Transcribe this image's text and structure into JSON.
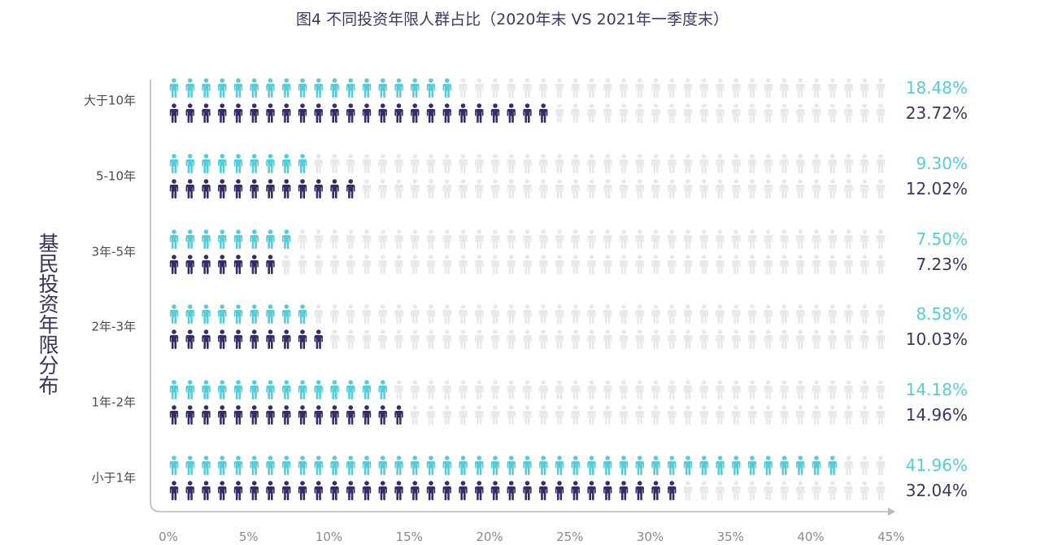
{
  "chart_data": {
    "type": "bar",
    "title": "图4   不同投资年限人群占比（2020年末 VS 2021年一季度末）",
    "ylabel": "基民投资年限分布",
    "xlabel": "",
    "categories": [
      "大于10年",
      "5-10年",
      "3年-5年",
      "2年-3年",
      "1年-2年",
      "小于1年"
    ],
    "series": [
      {
        "key": "2020",
        "color": "#55cdd9",
        "values": [
          18.48,
          9.3,
          7.5,
          8.58,
          14.18,
          41.96
        ],
        "labels": [
          "18.48%",
          "9.30%",
          "7.50%",
          "8.58%",
          "14.18%",
          "41.96%"
        ]
      },
      {
        "key": "2021",
        "color": "#332f66",
        "values": [
          23.72,
          12.02,
          7.23,
          10.03,
          14.96,
          32.04
        ],
        "labels": [
          "23.72%",
          "12.02%",
          "7.23%",
          "10.03%",
          "14.96%",
          "32.04%"
        ]
      }
    ],
    "xlim": [
      0,
      45
    ],
    "xticks": [
      "0%",
      "5%",
      "10%",
      "15%",
      "20%",
      "25%",
      "30%",
      "35%",
      "40%",
      "45%"
    ],
    "unit_per_icon_percent": 1,
    "icon_background_color": "#e8e8eb",
    "axis_color": "#b8b8b8",
    "grid": false
  }
}
